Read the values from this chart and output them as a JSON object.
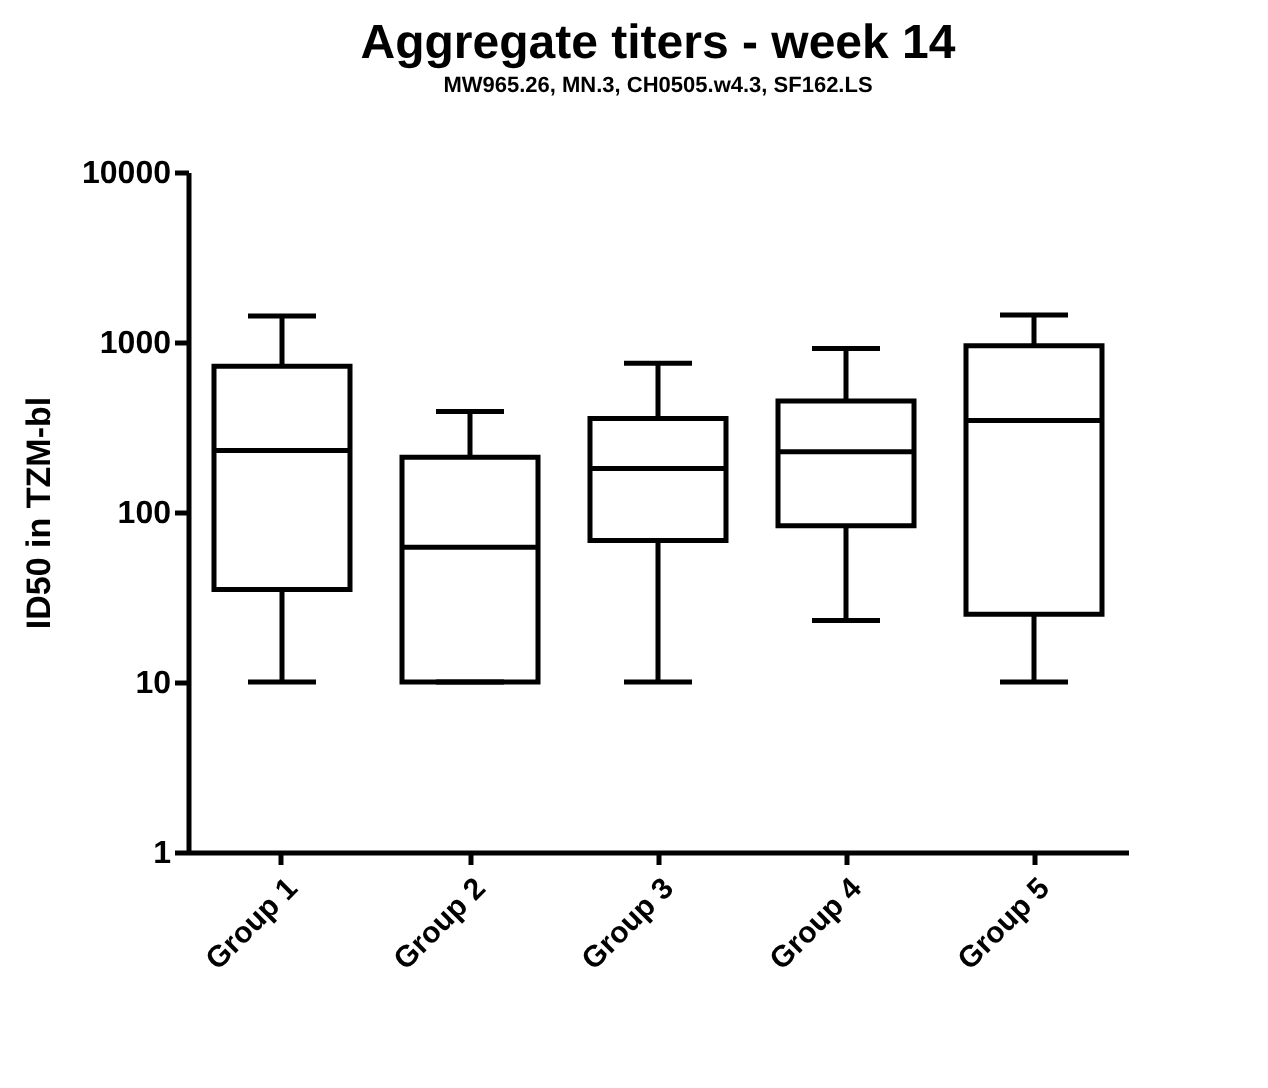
{
  "chart_data": {
    "type": "box",
    "title": "Aggregate titers - week 14",
    "subtitle": "MW965.26, MN.3, CH0505.w4.3, SF162.LS",
    "ylabel": "ID50 in TZM-bl",
    "categories": [
      "Group 1",
      "Group 2",
      "Group 3",
      "Group 4",
      "Group 5"
    ],
    "boxes": [
      {
        "low": 10,
        "q1": 35,
        "median": 230,
        "q3": 720,
        "high": 1420
      },
      {
        "low": 10,
        "q1": 10,
        "median": 62,
        "q3": 210,
        "high": 390
      },
      {
        "low": 10,
        "q1": 68,
        "median": 180,
        "q3": 355,
        "high": 750
      },
      {
        "low": 23,
        "q1": 83,
        "median": 226,
        "q3": 450,
        "high": 915
      },
      {
        "low": 10,
        "q1": 25,
        "median": 345,
        "q3": 950,
        "high": 1440
      }
    ],
    "color": "#000000",
    "log": true,
    "ylim": [
      1,
      10000
    ],
    "yticks": [
      1,
      10,
      100,
      1000,
      10000
    ],
    "grid": false
  }
}
